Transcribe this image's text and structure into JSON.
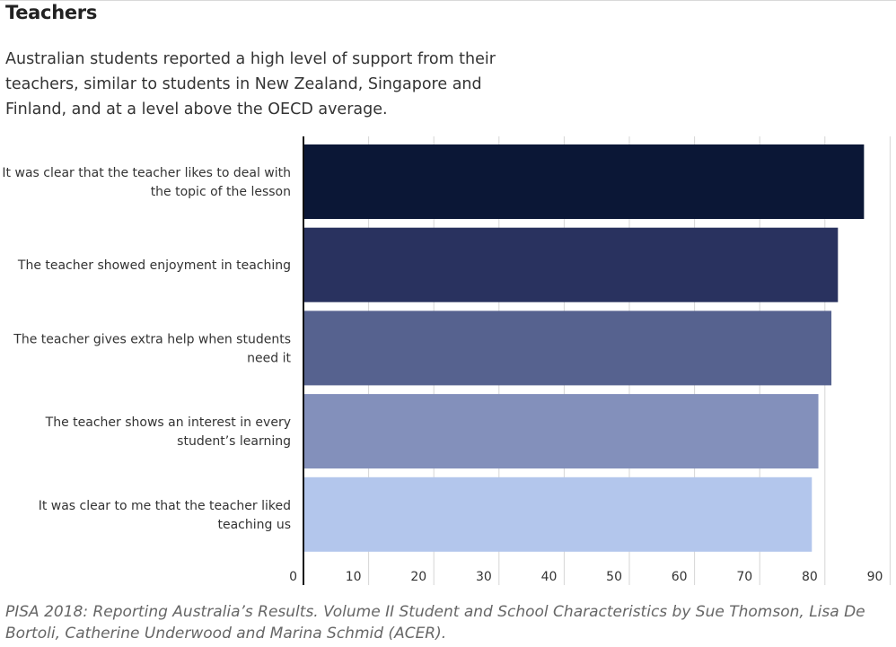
{
  "title": "Teachers",
  "subtitle": "Australian students reported a high level of support from their teachers, similar to students in New Zealand, Singapore and Finland, and at a level above the OECD average.",
  "caption": "PISA 2018: Reporting Australia’s Results. Volume II Student and School Characteristics by Sue Thomson, Lisa De Bortoli, Catherine Underwood and Marina Schmid (ACER).",
  "chart_data": {
    "type": "bar",
    "orientation": "horizontal",
    "categories": [
      [
        "It was clear that the teacher likes to deal with",
        "the topic of the lesson"
      ],
      [
        "The teacher showed enjoyment in teaching"
      ],
      [
        "The teacher gives extra help when students",
        "need it"
      ],
      [
        "The teacher shows an interest in every",
        "student’s learning"
      ],
      [
        "It was clear to me that the teacher liked",
        "teaching us"
      ]
    ],
    "values": [
      86,
      82,
      81,
      79,
      78
    ],
    "colors": [
      "#0b1736",
      "#29325f",
      "#56628f",
      "#8390bb",
      "#b3c6ec"
    ],
    "xlim": [
      0,
      90
    ],
    "ticks": [
      0,
      10,
      20,
      30,
      40,
      50,
      60,
      70,
      80,
      90
    ],
    "grid": true,
    "legend": "none"
  }
}
